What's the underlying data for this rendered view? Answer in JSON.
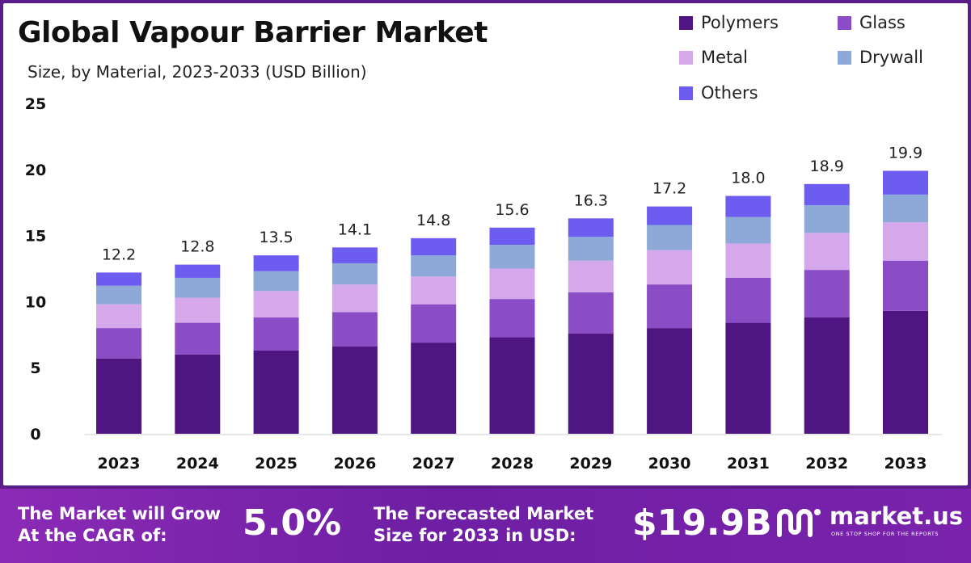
{
  "colors": {
    "polymers": "#4f1581",
    "glass": "#8b4dc6",
    "metal": "#d5a8ec",
    "drywall": "#8ea8d8",
    "others": "#6d5cf0"
  },
  "footer": {
    "cagr_label_line1": "The Market will Grow",
    "cagr_label_line2": "At the CAGR of:",
    "cagr_value": "5.0%",
    "forecast_label_line1": "The Forecasted Market",
    "forecast_label_line2": "Size for 2033 in USD:",
    "forecast_value": "$19.9B",
    "logo_text": "market.us",
    "logo_tagline": "ONE STOP SHOP FOR THE REPORTS",
    "logo_icon": "market-us-logo-icon"
  },
  "chart_data": {
    "type": "bar",
    "stacked": true,
    "title": "Global Vapour Barrier Market",
    "subtitle": "Size, by Material, 2023-2033 (USD Billion)",
    "xlabel": "",
    "ylabel": "",
    "ylim": [
      0,
      25
    ],
    "yticks": [
      0,
      5,
      10,
      15,
      20,
      25
    ],
    "grid": false,
    "legend_placement": "top-right",
    "categories": [
      "2023",
      "2024",
      "2025",
      "2026",
      "2027",
      "2028",
      "2029",
      "2030",
      "2031",
      "2032",
      "2033"
    ],
    "totals": [
      "12.2",
      "12.8",
      "13.5",
      "14.1",
      "14.8",
      "15.6",
      "16.3",
      "17.2",
      "18.0",
      "18.9",
      "19.9"
    ],
    "series": [
      {
        "name": "Polymers",
        "color_key": "polymers",
        "values": [
          5.7,
          6.0,
          6.3,
          6.6,
          6.9,
          7.3,
          7.6,
          8.0,
          8.4,
          8.8,
          9.3
        ]
      },
      {
        "name": "Glass",
        "color_key": "glass",
        "values": [
          2.3,
          2.4,
          2.5,
          2.6,
          2.9,
          2.9,
          3.1,
          3.3,
          3.4,
          3.6,
          3.8
        ]
      },
      {
        "name": "Metal",
        "color_key": "metal",
        "values": [
          1.8,
          1.9,
          2.0,
          2.1,
          2.1,
          2.3,
          2.4,
          2.6,
          2.6,
          2.8,
          2.9
        ]
      },
      {
        "name": "Drywall",
        "color_key": "drywall",
        "values": [
          1.4,
          1.5,
          1.5,
          1.6,
          1.6,
          1.8,
          1.8,
          1.9,
          2.0,
          2.1,
          2.1
        ]
      },
      {
        "name": "Others",
        "color_key": "others",
        "values": [
          1.0,
          1.0,
          1.2,
          1.2,
          1.3,
          1.3,
          1.4,
          1.4,
          1.6,
          1.6,
          1.8
        ]
      }
    ]
  }
}
